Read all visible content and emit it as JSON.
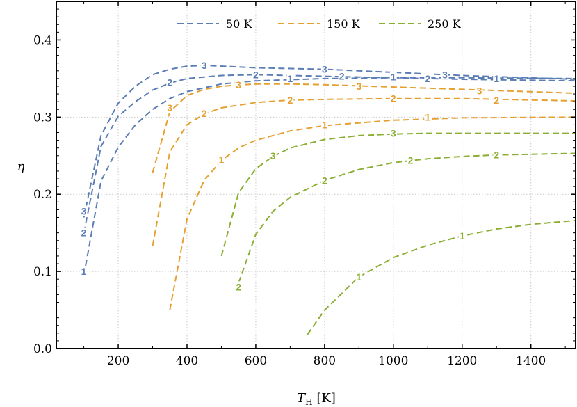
{
  "chart_data": {
    "type": "line",
    "xlabel": "T_H [K]",
    "ylabel": "η",
    "xlim": [
      20,
      1530
    ],
    "ylim": [
      0,
      0.45
    ],
    "x_ticks": [
      200,
      400,
      600,
      800,
      1000,
      1200,
      1400
    ],
    "y_ticks": [
      0.0,
      0.1,
      0.2,
      0.3,
      0.4
    ],
    "x_tick_labels": [
      "200",
      "400",
      "600",
      "800",
      "1000",
      "1200",
      "1400"
    ],
    "y_tick_labels": [
      "0.0",
      "0.1",
      "0.2",
      "0.3",
      "0.4"
    ],
    "grid": true,
    "legend_position": "top",
    "series": [
      {
        "name": "50 K",
        "label": "1",
        "color": "#5a7db5",
        "x": [
          100,
          150,
          200,
          250,
          300,
          350,
          400,
          500,
          600,
          800,
          1000,
          1200,
          1530
        ],
        "y": [
          0.095,
          0.217,
          0.261,
          0.29,
          0.31,
          0.324,
          0.333,
          0.343,
          0.347,
          0.35,
          0.351,
          0.351,
          0.35
        ],
        "label_at": [
          [
            100,
            0.1
          ],
          [
            700,
            0.35
          ],
          [
            1000,
            0.352
          ],
          [
            1300,
            0.35
          ]
        ]
      },
      {
        "name": "50 K",
        "label": "2",
        "color": "#5a7db5",
        "x": [
          100,
          150,
          200,
          250,
          300,
          350,
          400,
          500,
          600,
          800,
          1000,
          1200,
          1530
        ],
        "y": [
          0.15,
          0.262,
          0.301,
          0.32,
          0.335,
          0.344,
          0.35,
          0.354,
          0.355,
          0.353,
          0.351,
          0.349,
          0.347
        ],
        "label_at": [
          [
            100,
            0.15
          ],
          [
            350,
            0.345
          ],
          [
            600,
            0.355
          ],
          [
            850,
            0.353
          ],
          [
            1100,
            0.35
          ]
        ]
      },
      {
        "name": "50 K",
        "label": "3",
        "color": "#5a7db5",
        "x": [
          100,
          150,
          200,
          250,
          300,
          350,
          400,
          450,
          500,
          600,
          800,
          1000,
          1200,
          1530
        ],
        "y": [
          0.17,
          0.276,
          0.318,
          0.34,
          0.355,
          0.362,
          0.366,
          0.367,
          0.366,
          0.364,
          0.362,
          0.358,
          0.354,
          0.349
        ],
        "label_at": [
          [
            100,
            0.178
          ],
          [
            450,
            0.367
          ],
          [
            800,
            0.362
          ],
          [
            1150,
            0.355
          ]
        ]
      },
      {
        "name": "150 K",
        "label": "1",
        "color": "#e5a030",
        "x": [
          350,
          400,
          450,
          500,
          550,
          600,
          700,
          800,
          1000,
          1200,
          1530
        ],
        "y": [
          0.05,
          0.168,
          0.218,
          0.244,
          0.26,
          0.27,
          0.282,
          0.289,
          0.296,
          0.299,
          0.3
        ],
        "label_at": [
          [
            500,
            0.245
          ],
          [
            800,
            0.29
          ],
          [
            1100,
            0.3
          ]
        ]
      },
      {
        "name": "150 K",
        "label": "2",
        "color": "#e5a030",
        "x": [
          300,
          350,
          400,
          450,
          500,
          600,
          700,
          800,
          1000,
          1200,
          1530
        ],
        "y": [
          0.133,
          0.255,
          0.29,
          0.304,
          0.312,
          0.319,
          0.322,
          0.323,
          0.324,
          0.324,
          0.321
        ],
        "label_at": [
          [
            450,
            0.305
          ],
          [
            700,
            0.322
          ],
          [
            1000,
            0.324
          ],
          [
            1300,
            0.322
          ]
        ]
      },
      {
        "name": "150 K",
        "label": "3",
        "color": "#e5a030",
        "x": [
          300,
          350,
          400,
          450,
          500,
          600,
          700,
          800,
          1000,
          1200,
          1530
        ],
        "y": [
          0.228,
          0.307,
          0.328,
          0.336,
          0.34,
          0.343,
          0.343,
          0.342,
          0.339,
          0.336,
          0.331
        ],
        "label_at": [
          [
            350,
            0.312
          ],
          [
            550,
            0.342
          ],
          [
            900,
            0.34
          ],
          [
            1250,
            0.334
          ]
        ]
      },
      {
        "name": "250 K",
        "label": "1",
        "color": "#8aae32",
        "x": [
          750,
          800,
          900,
          1000,
          1100,
          1200,
          1300,
          1400,
          1530
        ],
        "y": [
          0.018,
          0.05,
          0.093,
          0.118,
          0.134,
          0.146,
          0.155,
          0.161,
          0.166
        ],
        "label_at": [
          [
            900,
            0.093
          ],
          [
            1200,
            0.146
          ]
        ]
      },
      {
        "name": "250 K",
        "label": "2",
        "color": "#8aae32",
        "x": [
          550,
          600,
          650,
          700,
          800,
          900,
          1000,
          1100,
          1200,
          1300,
          1530
        ],
        "y": [
          0.085,
          0.148,
          0.178,
          0.196,
          0.218,
          0.232,
          0.241,
          0.246,
          0.249,
          0.251,
          0.253
        ],
        "label_at": [
          [
            550,
            0.08
          ],
          [
            800,
            0.218
          ],
          [
            1050,
            0.244
          ],
          [
            1300,
            0.251
          ]
        ]
      },
      {
        "name": "250 K",
        "label": "3",
        "color": "#8aae32",
        "x": [
          500,
          550,
          600,
          650,
          700,
          800,
          900,
          1000,
          1100,
          1200,
          1530
        ],
        "y": [
          0.12,
          0.202,
          0.233,
          0.249,
          0.26,
          0.271,
          0.276,
          0.278,
          0.279,
          0.279,
          0.279
        ],
        "label_at": [
          [
            650,
            0.25
          ],
          [
            1000,
            0.279
          ]
        ]
      }
    ],
    "legend": [
      {
        "label": "50 K",
        "color": "#5a7db5"
      },
      {
        "label": "150 K",
        "color": "#e5a030"
      },
      {
        "label": "250 K",
        "color": "#8aae32"
      }
    ]
  }
}
